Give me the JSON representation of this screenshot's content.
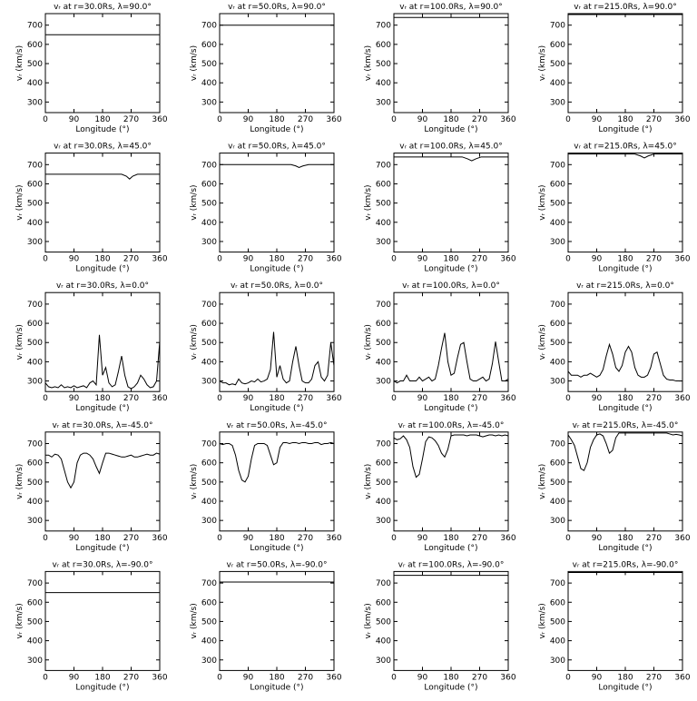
{
  "chart_data": [
    {
      "type": "line",
      "title": "vᵣ at r=30.0Rs, λ=90.0°",
      "xlabel": "Longitude (°)",
      "ylabel": "vᵣ (km/s)",
      "xlim": [
        0,
        360
      ],
      "ylim": [
        245,
        760
      ],
      "xticks": [
        0,
        90,
        180,
        270,
        360
      ],
      "yticks": [
        300,
        400,
        500,
        600,
        700
      ],
      "color": "#000000",
      "x": [
        0,
        360
      ],
      "values": [
        650,
        650
      ]
    },
    {
      "type": "line",
      "title": "vᵣ at r=50.0Rs, λ=90.0°",
      "xlabel": "Longitude (°)",
      "ylabel": "vᵣ (km/s)",
      "xlim": [
        0,
        360
      ],
      "ylim": [
        245,
        760
      ],
      "xticks": [
        0,
        90,
        180,
        270,
        360
      ],
      "yticks": [
        300,
        400,
        500,
        600,
        700
      ],
      "color": "#000000",
      "x": [
        0,
        360
      ],
      "values": [
        700,
        700
      ]
    },
    {
      "type": "line",
      "title": "vᵣ at r=100.0Rs, λ=90.0°",
      "xlabel": "Longitude (°)",
      "ylabel": "vᵣ (km/s)",
      "xlim": [
        0,
        360
      ],
      "ylim": [
        245,
        760
      ],
      "xticks": [
        0,
        90,
        180,
        270,
        360
      ],
      "yticks": [
        300,
        400,
        500,
        600,
        700
      ],
      "color": "#000000",
      "x": [
        0,
        360
      ],
      "values": [
        740,
        740
      ]
    },
    {
      "type": "line",
      "title": "vᵣ at r=215.0Rs, λ=90.0°",
      "xlabel": "Longitude (°)",
      "ylabel": "vᵣ (km/s)",
      "xlim": [
        0,
        360
      ],
      "ylim": [
        245,
        760
      ],
      "xticks": [
        0,
        90,
        180,
        270,
        360
      ],
      "yticks": [
        300,
        400,
        500,
        600,
        700
      ],
      "color": "#000000",
      "x": [
        0,
        360
      ],
      "values": [
        755,
        755
      ]
    },
    {
      "type": "line",
      "title": "vᵣ at r=30.0Rs, λ=45.0°",
      "xlabel": "Longitude (°)",
      "ylabel": "vᵣ (km/s)",
      "xlim": [
        0,
        360
      ],
      "ylim": [
        245,
        760
      ],
      "xticks": [
        0,
        90,
        180,
        270,
        360
      ],
      "yticks": [
        300,
        400,
        500,
        600,
        700
      ],
      "color": "#000000",
      "x": [
        0,
        240,
        255,
        265,
        275,
        290,
        360
      ],
      "values": [
        650,
        650,
        640,
        625,
        640,
        650,
        650
      ]
    },
    {
      "type": "line",
      "title": "vᵣ at r=50.0Rs, λ=45.0°",
      "xlabel": "Longitude (°)",
      "ylabel": "vᵣ (km/s)",
      "xlim": [
        0,
        360
      ],
      "ylim": [
        245,
        760
      ],
      "xticks": [
        0,
        90,
        180,
        270,
        360
      ],
      "yticks": [
        300,
        400,
        500,
        600,
        700
      ],
      "color": "#000000",
      "x": [
        0,
        225,
        240,
        250,
        262,
        280,
        360
      ],
      "values": [
        700,
        700,
        693,
        685,
        693,
        700,
        700
      ]
    },
    {
      "type": "line",
      "title": "vᵣ at r=100.0Rs, λ=45.0°",
      "xlabel": "Longitude (°)",
      "ylabel": "vᵣ (km/s)",
      "xlim": [
        0,
        360
      ],
      "ylim": [
        245,
        760
      ],
      "xticks": [
        0,
        90,
        180,
        270,
        360
      ],
      "yticks": [
        300,
        400,
        500,
        600,
        700
      ],
      "color": "#000000",
      "x": [
        0,
        215,
        232,
        245,
        258,
        275,
        360
      ],
      "values": [
        740,
        740,
        730,
        720,
        730,
        740,
        740
      ]
    },
    {
      "type": "line",
      "title": "vᵣ at r=215.0Rs, λ=45.0°",
      "xlabel": "Longitude (°)",
      "ylabel": "vᵣ (km/s)",
      "xlim": [
        0,
        360
      ],
      "ylim": [
        245,
        760
      ],
      "xticks": [
        0,
        90,
        180,
        270,
        360
      ],
      "yticks": [
        300,
        400,
        500,
        600,
        700
      ],
      "color": "#000000",
      "x": [
        0,
        210,
        228,
        240,
        252,
        270,
        360
      ],
      "values": [
        755,
        755,
        745,
        735,
        745,
        755,
        755
      ]
    },
    {
      "type": "line",
      "title": "vᵣ at r=30.0Rs, λ=0.0°",
      "xlabel": "Longitude (°)",
      "ylabel": "vᵣ (km/s)",
      "xlim": [
        0,
        360
      ],
      "ylim": [
        245,
        760
      ],
      "xticks": [
        0,
        90,
        180,
        270,
        360
      ],
      "yticks": [
        300,
        400,
        500,
        600,
        700
      ],
      "color": "#000000",
      "x": [
        0,
        10,
        20,
        30,
        40,
        50,
        60,
        70,
        80,
        90,
        100,
        110,
        120,
        130,
        140,
        150,
        160,
        170,
        180,
        190,
        200,
        210,
        220,
        230,
        240,
        250,
        260,
        270,
        280,
        290,
        300,
        310,
        320,
        330,
        340,
        350,
        360
      ],
      "values": [
        290,
        270,
        265,
        270,
        265,
        280,
        265,
        270,
        265,
        275,
        265,
        270,
        275,
        265,
        290,
        300,
        280,
        540,
        330,
        370,
        290,
        270,
        280,
        350,
        430,
        330,
        270,
        260,
        270,
        290,
        330,
        310,
        280,
        265,
        270,
        300,
        505
      ]
    },
    {
      "type": "line",
      "title": "vᵣ at r=50.0Rs, λ=0.0°",
      "xlabel": "Longitude (°)",
      "ylabel": "vᵣ (km/s)",
      "xlim": [
        0,
        360
      ],
      "ylim": [
        245,
        760
      ],
      "xticks": [
        0,
        90,
        180,
        270,
        360
      ],
      "yticks": [
        300,
        400,
        500,
        600,
        700
      ],
      "color": "#000000",
      "x": [
        0,
        10,
        20,
        30,
        40,
        50,
        60,
        70,
        80,
        90,
        100,
        110,
        120,
        130,
        140,
        150,
        160,
        170,
        180,
        190,
        200,
        210,
        220,
        230,
        240,
        250,
        260,
        270,
        280,
        290,
        300,
        310,
        320,
        330,
        340,
        350,
        360
      ],
      "values": [
        300,
        290,
        290,
        280,
        285,
        280,
        310,
        290,
        285,
        290,
        300,
        295,
        310,
        295,
        300,
        310,
        360,
        555,
        320,
        380,
        310,
        290,
        300,
        400,
        480,
        380,
        300,
        290,
        290,
        310,
        380,
        400,
        320,
        300,
        330,
        500,
        380
      ]
    },
    {
      "type": "line",
      "title": "vᵣ at r=100.0Rs, λ=0.0°",
      "xlabel": "Longitude (°)",
      "ylabel": "vᵣ (km/s)",
      "xlim": [
        0,
        360
      ],
      "ylim": [
        245,
        760
      ],
      "xticks": [
        0,
        90,
        180,
        270,
        360
      ],
      "yticks": [
        300,
        400,
        500,
        600,
        700
      ],
      "color": "#000000",
      "x": [
        0,
        10,
        20,
        30,
        40,
        50,
        60,
        70,
        80,
        90,
        100,
        110,
        120,
        130,
        140,
        150,
        160,
        170,
        180,
        190,
        200,
        210,
        220,
        230,
        240,
        250,
        260,
        270,
        280,
        290,
        300,
        310,
        320,
        330,
        340,
        350,
        360
      ],
      "values": [
        300,
        290,
        300,
        300,
        330,
        300,
        300,
        300,
        320,
        300,
        310,
        320,
        300,
        310,
        380,
        470,
        550,
        400,
        330,
        340,
        420,
        490,
        500,
        400,
        310,
        300,
        300,
        310,
        320,
        300,
        310,
        390,
        505,
        400,
        300,
        300,
        310
      ]
    },
    {
      "type": "line",
      "title": "vᵣ at r=215.0Rs, λ=0.0°",
      "xlabel": "Longitude (°)",
      "ylabel": "vᵣ (km/s)",
      "xlim": [
        0,
        360
      ],
      "ylim": [
        245,
        760
      ],
      "xticks": [
        0,
        90,
        180,
        270,
        360
      ],
      "yticks": [
        300,
        400,
        500,
        600,
        700
      ],
      "color": "#000000",
      "x": [
        0,
        10,
        20,
        30,
        40,
        50,
        60,
        70,
        80,
        90,
        100,
        110,
        120,
        130,
        140,
        150,
        160,
        170,
        180,
        190,
        200,
        210,
        220,
        230,
        240,
        250,
        260,
        270,
        280,
        290,
        300,
        310,
        320,
        330,
        340,
        350,
        360
      ],
      "values": [
        350,
        330,
        330,
        330,
        320,
        330,
        330,
        340,
        330,
        320,
        330,
        360,
        430,
        490,
        440,
        370,
        350,
        380,
        450,
        480,
        450,
        370,
        330,
        320,
        320,
        330,
        370,
        440,
        450,
        390,
        330,
        310,
        305,
        305,
        300,
        300,
        300
      ]
    },
    {
      "type": "line",
      "title": "vᵣ at r=30.0Rs, λ=-45.0°",
      "xlabel": "Longitude (°)",
      "ylabel": "vᵣ (km/s)",
      "xlim": [
        0,
        360
      ],
      "ylim": [
        245,
        760
      ],
      "xticks": [
        0,
        90,
        180,
        270,
        360
      ],
      "yticks": [
        300,
        400,
        500,
        600,
        700
      ],
      "color": "#000000",
      "x": [
        0,
        10,
        20,
        30,
        40,
        50,
        60,
        70,
        80,
        90,
        100,
        110,
        120,
        130,
        140,
        150,
        160,
        170,
        180,
        190,
        200,
        210,
        220,
        230,
        240,
        250,
        260,
        270,
        280,
        290,
        300,
        310,
        320,
        330,
        340,
        350,
        360
      ],
      "values": [
        640,
        640,
        630,
        645,
        640,
        620,
        560,
        500,
        470,
        500,
        600,
        640,
        650,
        650,
        640,
        620,
        580,
        545,
        600,
        650,
        650,
        645,
        640,
        635,
        630,
        630,
        635,
        640,
        630,
        630,
        635,
        640,
        645,
        640,
        640,
        650,
        645
      ]
    },
    {
      "type": "line",
      "title": "vᵣ at r=50.0Rs, λ=-45.0°",
      "xlabel": "Longitude (°)",
      "ylabel": "vᵣ (km/s)",
      "xlim": [
        0,
        360
      ],
      "ylim": [
        245,
        760
      ],
      "xticks": [
        0,
        90,
        180,
        270,
        360
      ],
      "yticks": [
        300,
        400,
        500,
        600,
        700
      ],
      "color": "#000000",
      "x": [
        0,
        10,
        20,
        30,
        40,
        50,
        60,
        70,
        80,
        90,
        100,
        110,
        120,
        130,
        140,
        150,
        160,
        170,
        180,
        190,
        200,
        210,
        220,
        230,
        240,
        250,
        260,
        270,
        280,
        290,
        300,
        310,
        320,
        330,
        340,
        350,
        360
      ],
      "values": [
        700,
        695,
        700,
        700,
        690,
        640,
        560,
        510,
        500,
        530,
        620,
        690,
        700,
        700,
        700,
        690,
        640,
        590,
        600,
        680,
        705,
        705,
        700,
        705,
        705,
        700,
        705,
        705,
        700,
        700,
        705,
        705,
        695,
        700,
        700,
        705,
        700
      ]
    },
    {
      "type": "line",
      "title": "vᵣ at r=100.0Rs, λ=-45.0°",
      "xlabel": "Longitude (°)",
      "ylabel": "vᵣ (km/s)",
      "xlim": [
        0,
        360
      ],
      "ylim": [
        245,
        760
      ],
      "xticks": [
        0,
        90,
        180,
        270,
        360
      ],
      "yticks": [
        300,
        400,
        500,
        600,
        700
      ],
      "color": "#000000",
      "x": [
        0,
        10,
        20,
        30,
        40,
        50,
        60,
        70,
        80,
        90,
        100,
        110,
        120,
        130,
        140,
        150,
        160,
        170,
        180,
        190,
        200,
        210,
        220,
        230,
        240,
        250,
        260,
        270,
        280,
        290,
        300,
        310,
        320,
        330,
        340,
        350,
        360
      ],
      "values": [
        730,
        720,
        725,
        740,
        720,
        680,
        580,
        525,
        540,
        620,
        710,
        735,
        730,
        715,
        690,
        650,
        630,
        670,
        740,
        745,
        745,
        745,
        745,
        740,
        745,
        745,
        745,
        740,
        735,
        740,
        745,
        745,
        740,
        745,
        740,
        745,
        740
      ]
    },
    {
      "type": "line",
      "title": "vᵣ at r=215.0Rs, λ=-45.0°",
      "xlabel": "Longitude (°)",
      "ylabel": "vᵣ (km/s)",
      "xlim": [
        0,
        360
      ],
      "ylim": [
        245,
        760
      ],
      "xticks": [
        0,
        90,
        180,
        270,
        360
      ],
      "yticks": [
        300,
        400,
        500,
        600,
        700
      ],
      "color": "#000000",
      "x": [
        0,
        10,
        20,
        30,
        40,
        50,
        60,
        70,
        80,
        90,
        100,
        110,
        120,
        130,
        140,
        150,
        160,
        170,
        180,
        190,
        200,
        210,
        220,
        230,
        240,
        250,
        260,
        270,
        280,
        290,
        300,
        310,
        320,
        330,
        340,
        350,
        360
      ],
      "values": [
        745,
        720,
        690,
        630,
        570,
        560,
        600,
        680,
        720,
        745,
        750,
        740,
        700,
        650,
        665,
        730,
        755,
        755,
        755,
        755,
        755,
        755,
        755,
        755,
        755,
        755,
        755,
        755,
        755,
        755,
        755,
        755,
        750,
        745,
        748,
        745,
        740
      ]
    },
    {
      "type": "line",
      "title": "vᵣ at r=30.0Rs, λ=-90.0°",
      "xlabel": "Longitude (°)",
      "ylabel": "vᵣ (km/s)",
      "xlim": [
        0,
        360
      ],
      "ylim": [
        245,
        760
      ],
      "xticks": [
        0,
        90,
        180,
        270,
        360
      ],
      "yticks": [
        300,
        400,
        500,
        600,
        700
      ],
      "color": "#000000",
      "x": [
        0,
        360
      ],
      "values": [
        650,
        650
      ]
    },
    {
      "type": "line",
      "title": "vᵣ at r=50.0Rs, λ=-90.0°",
      "xlabel": "Longitude (°)",
      "ylabel": "vᵣ (km/s)",
      "xlim": [
        0,
        360
      ],
      "ylim": [
        245,
        760
      ],
      "xticks": [
        0,
        90,
        180,
        270,
        360
      ],
      "yticks": [
        300,
        400,
        500,
        600,
        700
      ],
      "color": "#000000",
      "x": [
        0,
        360
      ],
      "values": [
        705,
        705
      ]
    },
    {
      "type": "line",
      "title": "vᵣ at r=100.0Rs, λ=-90.0°",
      "xlabel": "Longitude (°)",
      "ylabel": "vᵣ (km/s)",
      "xlim": [
        0,
        360
      ],
      "ylim": [
        245,
        760
      ],
      "xticks": [
        0,
        90,
        180,
        270,
        360
      ],
      "yticks": [
        300,
        400,
        500,
        600,
        700
      ],
      "color": "#000000",
      "x": [
        0,
        360
      ],
      "values": [
        740,
        740
      ]
    },
    {
      "type": "line",
      "title": "vᵣ at r=215.0Rs, λ=-90.0°",
      "xlabel": "Longitude (°)",
      "ylabel": "vᵣ (km/s)",
      "xlim": [
        0,
        360
      ],
      "ylim": [
        245,
        760
      ],
      "xticks": [
        0,
        90,
        180,
        270,
        360
      ],
      "yticks": [
        300,
        400,
        500,
        600,
        700
      ],
      "color": "#000000",
      "x": [
        0,
        360
      ],
      "values": [
        755,
        755
      ]
    }
  ]
}
